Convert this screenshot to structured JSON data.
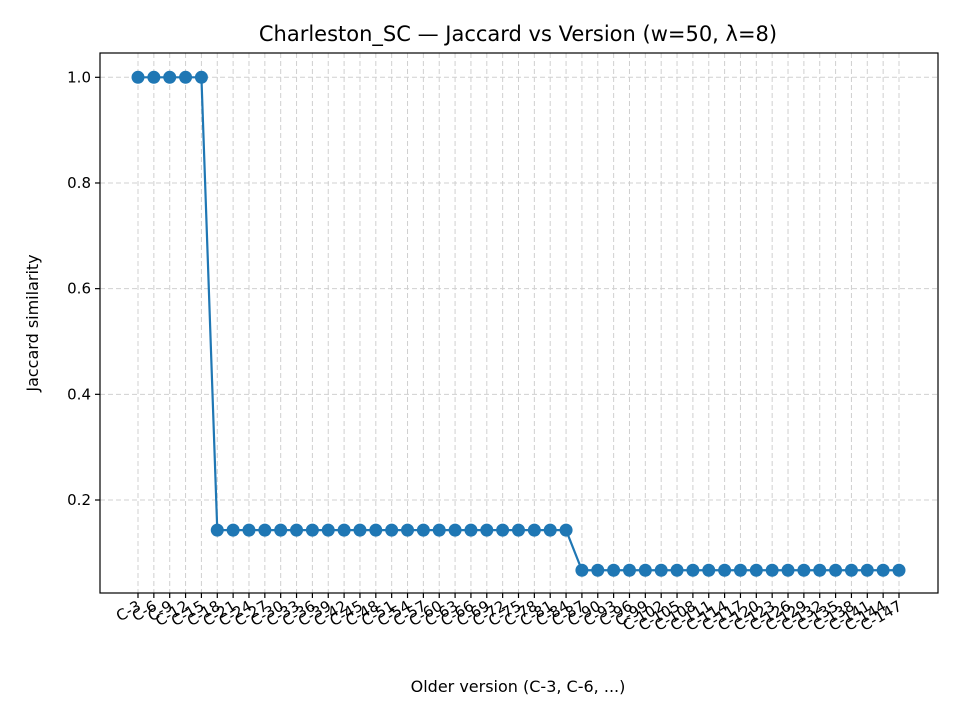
{
  "chart_data": {
    "type": "line",
    "title": "Charleston_SC — Jaccard vs Version (w=50, λ=8)",
    "xlabel": "Older version (C-3, C-6, ...)",
    "ylabel": "Jaccard similarity",
    "categories": [
      "C-3",
      "C-6",
      "C-9",
      "C-12",
      "C-15",
      "C-18",
      "C-21",
      "C-24",
      "C-27",
      "C-30",
      "C-33",
      "C-36",
      "C-39",
      "C-42",
      "C-45",
      "C-48",
      "C-51",
      "C-54",
      "C-57",
      "C-60",
      "C-63",
      "C-66",
      "C-69",
      "C-72",
      "C-75",
      "C-78",
      "C-81",
      "C-84",
      "C-87",
      "C-90",
      "C-93",
      "C-96",
      "C-99",
      "C-102",
      "C-105",
      "C-108",
      "C-111",
      "C-114",
      "C-117",
      "C-120",
      "C-123",
      "C-126",
      "C-129",
      "C-132",
      "C-135",
      "C-138",
      "C-141",
      "C-144",
      "C-147"
    ],
    "values": [
      1.0,
      1.0,
      1.0,
      1.0,
      1.0,
      0.143,
      0.143,
      0.143,
      0.143,
      0.143,
      0.143,
      0.143,
      0.143,
      0.143,
      0.143,
      0.143,
      0.143,
      0.143,
      0.143,
      0.143,
      0.143,
      0.143,
      0.143,
      0.143,
      0.143,
      0.143,
      0.143,
      0.143,
      0.067,
      0.067,
      0.067,
      0.067,
      0.067,
      0.067,
      0.067,
      0.067,
      0.067,
      0.067,
      0.067,
      0.067,
      0.067,
      0.067,
      0.067,
      0.067,
      0.067,
      0.067,
      0.067,
      0.067,
      0.067
    ],
    "ylim": [
      0.024,
      1.046
    ],
    "yticks": [
      "1.0",
      "0.8",
      "0.6",
      "0.4",
      "0.2"
    ],
    "grid": true,
    "colors": {
      "series": "#1f77b4"
    }
  }
}
